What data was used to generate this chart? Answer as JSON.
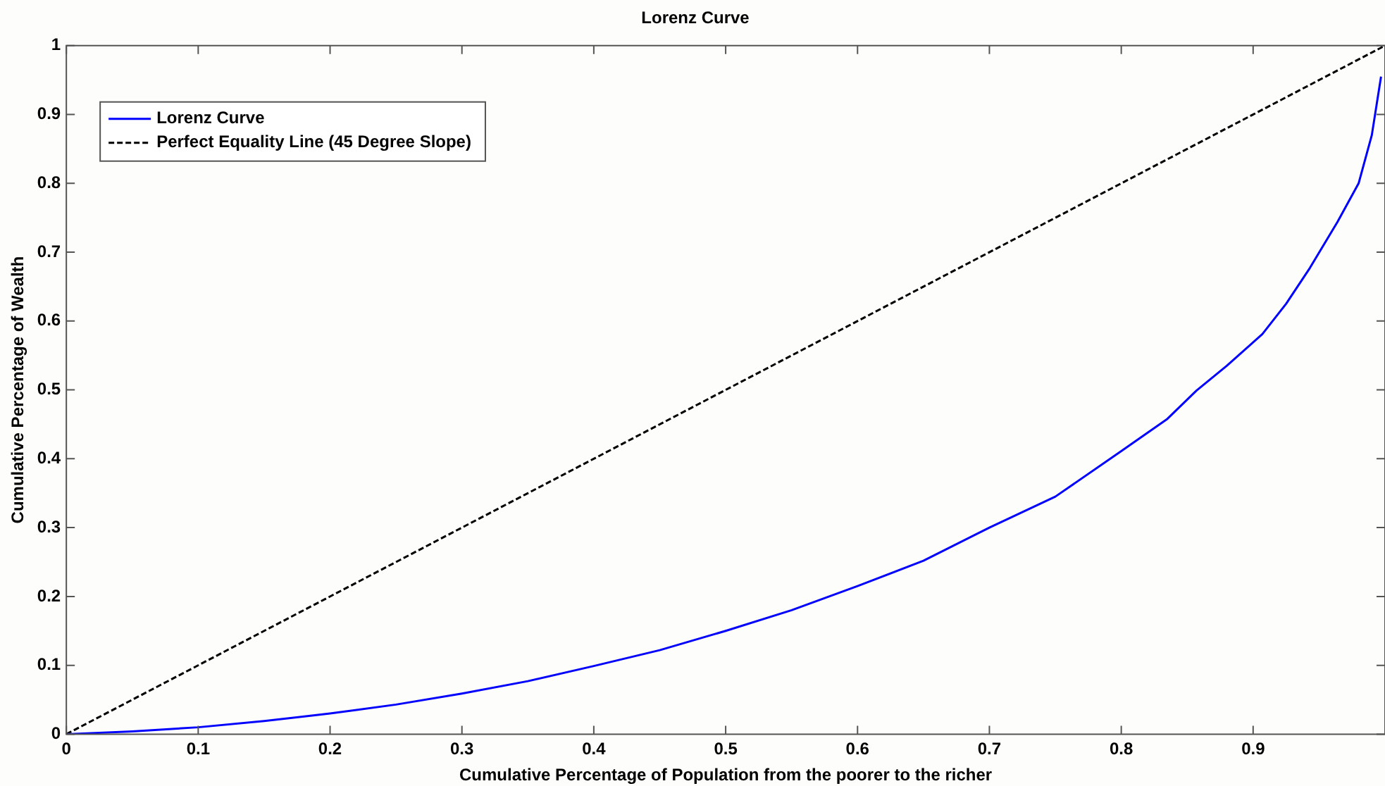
{
  "chart_data": {
    "type": "line",
    "title": "Lorenz Curve",
    "xlabel": "Cumulative Percentage of Population from the poorer to the richer",
    "ylabel": "Cumulative Percentage of Wealth",
    "xlim": [
      0,
      1
    ],
    "ylim": [
      0,
      1
    ],
    "xticks": [
      0,
      0.1,
      0.2,
      0.3,
      0.4,
      0.5,
      0.6,
      0.7,
      0.8,
      0.9
    ],
    "yticks": [
      0,
      0.1,
      0.2,
      0.3,
      0.4,
      0.5,
      0.6,
      0.7,
      0.8,
      0.9,
      1
    ],
    "grid": false,
    "legend": "top left",
    "marker": "none",
    "series": [
      {
        "name": "Lorenz Curve",
        "color": "#0000ff",
        "line_style": "solid",
        "x": [
          0,
          0.05,
          0.1,
          0.15,
          0.2,
          0.25,
          0.3,
          0.35,
          0.4,
          0.45,
          0.5,
          0.55,
          0.6,
          0.65,
          0.7,
          0.75,
          0.8,
          0.835,
          0.857,
          0.88,
          0.907,
          0.925,
          0.943,
          0.964,
          0.98,
          0.99,
          0.997
        ],
        "values": [
          0,
          0.004,
          0.01,
          0.019,
          0.03,
          0.043,
          0.059,
          0.077,
          0.099,
          0.122,
          0.15,
          0.18,
          0.215,
          0.252,
          0.3,
          0.345,
          0.411,
          0.458,
          0.499,
          0.535,
          0.581,
          0.625,
          0.677,
          0.744,
          0.8,
          0.87,
          0.955
        ]
      },
      {
        "name": "Perfect Equality Line (45 Degree Slope)",
        "color": "#000000",
        "line_style": "dashed",
        "x": [
          0,
          1
        ],
        "values": [
          0,
          1
        ]
      }
    ]
  }
}
